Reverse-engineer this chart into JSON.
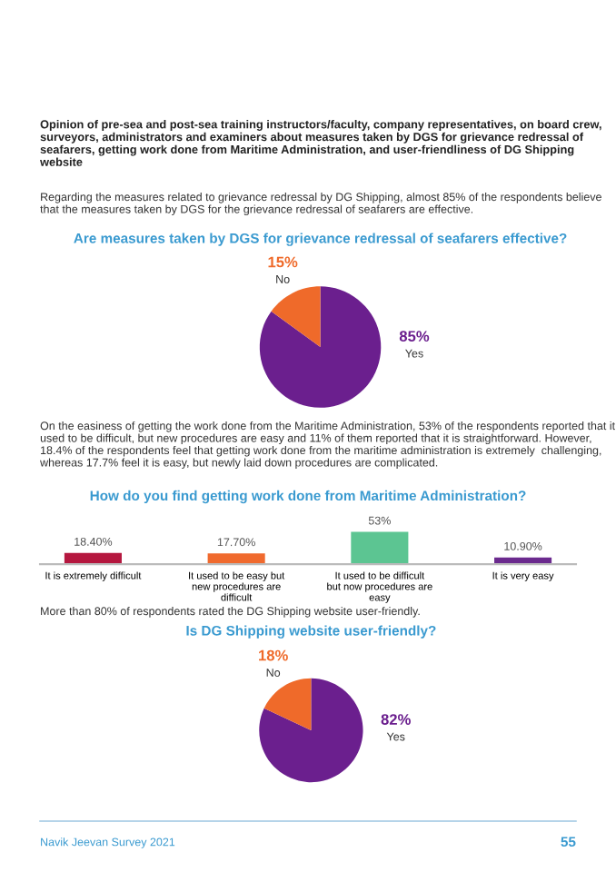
{
  "chart_data": [
    {
      "type": "pie",
      "title": "Are measures taken by DGS for grievance redressal of seafarers effective?",
      "categories": [
        "Yes",
        "No"
      ],
      "values": [
        85,
        15
      ],
      "colors": [
        "#6b1f8e",
        "#ef6a2a"
      ],
      "value_labels": [
        "85%",
        "15%"
      ],
      "annotations": [
        "Opinion of pre-sea and post-sea training instructors/faculty, company representatives, on board crew, surveyors, administrators and examiners about measures taken by DGS for grievance redressal of seafarers, getting work done from Maritime Administration, and user-friendliness of DG Shipping website",
        "Regarding the measures related to grievance redressal by DG Shipping, almost 85% of the respondents believe that the measures taken by DGS for the grievance redressal of seafarers are effective."
      ]
    },
    {
      "type": "bar",
      "title": "How do you find getting work done from Maritime Administration?",
      "categories": [
        "It is extremely difficult",
        "It used to be easy but\nnew procedures are\ndifficult",
        "It used to be difficult\nbut now procedures are\neasy",
        "It is very easy"
      ],
      "values": [
        18.4,
        17.7,
        53,
        10.9
      ],
      "colors": [
        "#b5173f",
        "#f06a2e",
        "#5cc592",
        "#6b2a8e"
      ],
      "value_labels": [
        "18.40%",
        "17.70%",
        "53%",
        "10.90%"
      ],
      "annotations": [
        "On the easiness of getting the work done from the Maritime Administration, 53% of the respondents reported that it used to be difficult, but new procedures are easy and 11% of them reported that it is straightforward. However, 18.4% of the respondents feel that getting work done from the maritime administration is extremely  challenging, whereas 17.7% feel it is easy, but newly laid down procedures are complicated."
      ]
    },
    {
      "type": "pie",
      "title": "Is DG Shipping website user-friendly?",
      "categories": [
        "Yes",
        "No"
      ],
      "values": [
        82,
        18
      ],
      "colors": [
        "#6b1f8e",
        "#ef6a2a"
      ],
      "value_labels": [
        "82%",
        "18%"
      ],
      "annotations": [
        "More than 80% of respondents rated the DG Shipping website user-friendly.",
        "Navik Jeevan Survey 2021",
        "55"
      ]
    }
  ]
}
